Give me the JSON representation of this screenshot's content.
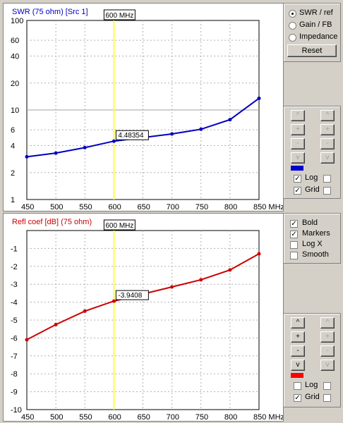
{
  "chart_data": [
    {
      "type": "line",
      "title": "SWR (75 ohm) [Src 1]",
      "x": [
        450,
        500,
        550,
        600,
        650,
        700,
        750,
        800,
        850
      ],
      "xlabel": "MHz",
      "x_ticks": [
        "450",
        "500",
        "550",
        "600",
        "650",
        "700",
        "750",
        "800",
        "850 MHz"
      ],
      "xlim": [
        450,
        850
      ],
      "ylim": [
        1,
        100
      ],
      "log_y": true,
      "grid": true,
      "y_ticks": [
        "100",
        "60",
        "40",
        "20",
        "10",
        "6",
        "4",
        "2",
        "1"
      ],
      "y_tick_values": [
        100,
        60,
        40,
        20,
        10,
        6,
        4,
        2,
        1
      ],
      "series": [
        {
          "points": [
            [
              450,
              3.0
            ],
            [
              500,
              3.3
            ],
            [
              550,
              3.8
            ],
            [
              600,
              4.48354
            ],
            [
              700,
              5.4
            ],
            [
              750,
              6.1
            ],
            [
              800,
              7.8
            ],
            [
              850,
              13.5
            ]
          ]
        }
      ],
      "color": "#0000c0",
      "marker": {
        "x": 600,
        "label": "600 MHz",
        "value": "4.48354"
      }
    },
    {
      "type": "line",
      "title": "Refl coef [dB] (75 ohm)",
      "x": [
        450,
        500,
        550,
        600,
        650,
        700,
        750,
        800,
        850
      ],
      "xlabel": "MHz",
      "x_ticks": [
        "450",
        "500",
        "550",
        "600",
        "650",
        "700",
        "750",
        "800",
        "850 MHz"
      ],
      "xlim": [
        450,
        850
      ],
      "ylim": [
        -10,
        0
      ],
      "grid": true,
      "y_ticks": [
        "-1",
        "-2",
        "-3",
        "-4",
        "-5",
        "-6",
        "-7",
        "-8",
        "-9",
        "-10"
      ],
      "y_tick_values": [
        -1,
        -2,
        -3,
        -4,
        -5,
        -6,
        -7,
        -8,
        -9,
        -10
      ],
      "series": [
        {
          "points": [
            [
              450,
              -6.1
            ],
            [
              500,
              -5.25
            ],
            [
              550,
              -4.5
            ],
            [
              600,
              -3.9408
            ],
            [
              700,
              -3.15
            ],
            [
              750,
              -2.75
            ],
            [
              800,
              -2.2
            ],
            [
              850,
              -1.3
            ]
          ]
        }
      ],
      "color": "#cc0000",
      "marker": {
        "x": 600,
        "label": "600 MHz",
        "value": "-3.9408"
      }
    }
  ],
  "top_controls": {
    "radio_options": [
      "SWR / ref",
      "Gain / FB",
      "Impedance"
    ],
    "selected": "SWR / ref",
    "reset_label": "Reset"
  },
  "swr_controls": {
    "color": "#0000cc",
    "log_label": "Log",
    "grid_label": "Grid",
    "log_checked": true,
    "grid_checked": true
  },
  "refl_controls": {
    "color": "#ff0000",
    "log_label": "Log",
    "grid_label": "Grid",
    "log_checked": false,
    "grid_checked": true
  },
  "options": {
    "bold_label": "Bold",
    "markers_label": "Markers",
    "logx_label": "Log X",
    "smooth_label": "Smooth",
    "bold_checked": true,
    "markers_checked": true,
    "logx_checked": false,
    "smooth_checked": false
  },
  "buttons": {
    "up": "^",
    "plus": "+",
    "minus": "-",
    "down": "v"
  }
}
